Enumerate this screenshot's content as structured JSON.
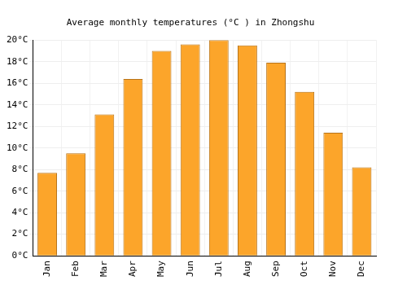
{
  "chart_data": {
    "type": "bar",
    "title": "Average monthly temperatures (°C ) in Zhongshu",
    "categories": [
      "Jan",
      "Feb",
      "Mar",
      "Apr",
      "May",
      "Jun",
      "Jul",
      "Aug",
      "Sep",
      "Oct",
      "Nov",
      "Dec"
    ],
    "values": [
      7.7,
      9.5,
      13.1,
      16.4,
      19.0,
      19.6,
      20.0,
      19.5,
      17.9,
      15.2,
      11.4,
      8.2
    ],
    "color": "#fca52a",
    "ylim": [
      0,
      20
    ],
    "yticks": [
      {
        "value": 0,
        "label": "0°C"
      },
      {
        "value": 2,
        "label": "2°C"
      },
      {
        "value": 4,
        "label": "4°C"
      },
      {
        "value": 6,
        "label": "6°C"
      },
      {
        "value": 8,
        "label": "8°C"
      },
      {
        "value": 10,
        "label": "10°C"
      },
      {
        "value": 12,
        "label": "12°C"
      },
      {
        "value": 14,
        "label": "14°C"
      },
      {
        "value": 16,
        "label": "16°C"
      },
      {
        "value": 18,
        "label": "18°C"
      },
      {
        "value": 20,
        "label": "20°C"
      }
    ],
    "grid": true
  }
}
